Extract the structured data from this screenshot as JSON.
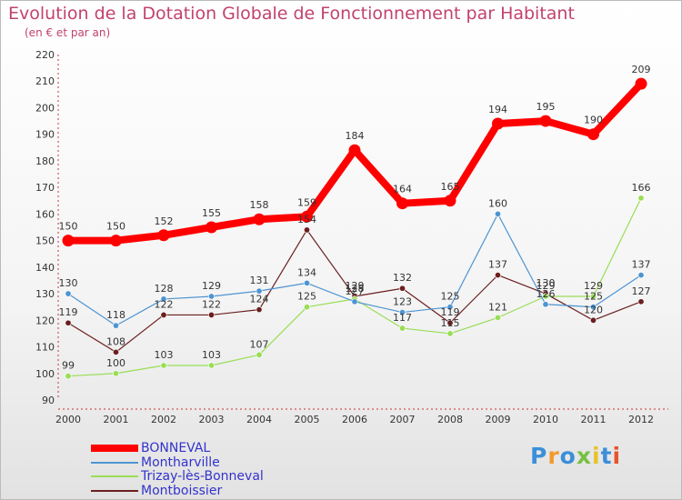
{
  "chart_data": {
    "type": "line",
    "title": "Evolution de la Dotation Globale de Fonctionnement par Habitant",
    "subtitle": "(en € et par an)",
    "xlabel": "",
    "ylabel": "",
    "x": [
      "2000",
      "2001",
      "2002",
      "2003",
      "2004",
      "2005",
      "2006",
      "2007",
      "2008",
      "2009",
      "2010",
      "2011",
      "2012"
    ],
    "ylim": [
      90,
      220
    ],
    "yticks": [
      "90",
      "100",
      "110",
      "120",
      "130",
      "140",
      "150",
      "160",
      "170",
      "180",
      "190",
      "200",
      "210",
      "220"
    ],
    "grid": "none",
    "legend_position": "bottom-left",
    "series": [
      {
        "name": "BONNEVAL",
        "color": "#ff0000",
        "values": [
          150,
          150,
          152,
          155,
          158,
          159,
          184,
          164,
          165,
          194,
          195,
          190,
          209
        ]
      },
      {
        "name": "Montharville",
        "color": "#4d94d1",
        "values": [
          130,
          118,
          128,
          129,
          131,
          134,
          127,
          123,
          125,
          160,
          126,
          125,
          137
        ]
      },
      {
        "name": "Trizay-lès-Bonneval",
        "color": "#99dd55",
        "values": [
          99,
          100,
          103,
          103,
          107,
          125,
          128,
          117,
          115,
          121,
          129,
          129,
          166
        ]
      },
      {
        "name": "Montboissier",
        "color": "#6b1f1f",
        "values": [
          119,
          108,
          122,
          122,
          124,
          154,
          129,
          132,
          119,
          137,
          130,
          120,
          127
        ]
      }
    ]
  },
  "logo": {
    "text": "Proxiti",
    "colors": [
      "#3b8fd9",
      "#f29a2e",
      "#3b8fd9",
      "#77c043",
      "#e8c22a",
      "#3b8fd9",
      "#e8532a"
    ]
  }
}
